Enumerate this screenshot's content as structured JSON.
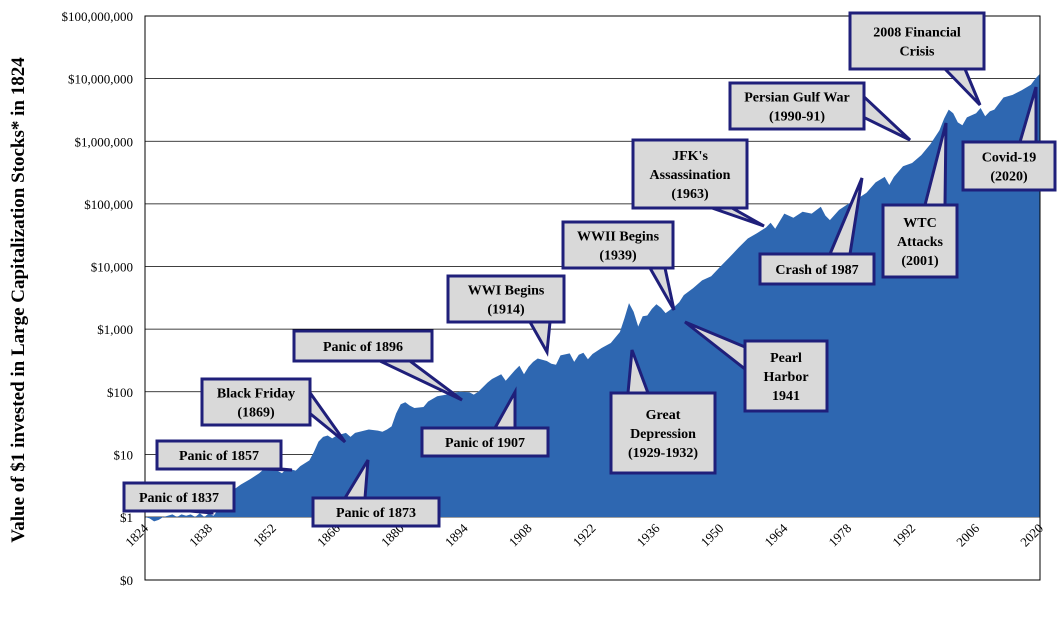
{
  "chart_data": {
    "type": "area",
    "ylabel": "Value of $1 invested in Large Capitalization Stocks* in 1824",
    "y_scale": "log",
    "yticks": [
      {
        "value": 0,
        "label": "$0"
      },
      {
        "value": 1,
        "label": "$1"
      },
      {
        "value": 10,
        "label": "$10"
      },
      {
        "value": 100,
        "label": "$100"
      },
      {
        "value": 1000,
        "label": "$1,000"
      },
      {
        "value": 10000,
        "label": "$10,000"
      },
      {
        "value": 100000,
        "label": "$100,000"
      },
      {
        "value": 1000000,
        "label": "$1,000,000"
      },
      {
        "value": 10000000,
        "label": "$10,000,000"
      },
      {
        "value": 100000000,
        "label": "$100,000,000"
      }
    ],
    "xticks": [
      "1824",
      "1838",
      "1852",
      "1866",
      "1880",
      "1894",
      "1908",
      "1922",
      "1936",
      "1950",
      "1964",
      "1978",
      "1992",
      "2006",
      "2020"
    ],
    "xlim": [
      1824,
      2020
    ],
    "grid": true,
    "series": [
      {
        "color": "#2e67b1",
        "x": [
          1824,
          1825,
          1826,
          1827,
          1828,
          1829,
          1830,
          1831,
          1832,
          1833,
          1834,
          1835,
          1836,
          1837,
          1838,
          1839,
          1840,
          1841,
          1842,
          1843,
          1845,
          1847,
          1849,
          1850,
          1852,
          1853,
          1854,
          1855,
          1857,
          1858,
          1860,
          1861,
          1862,
          1863,
          1864,
          1865,
          1866,
          1868,
          1869,
          1870,
          1872,
          1873,
          1875,
          1876,
          1877,
          1878,
          1879,
          1880,
          1881,
          1882,
          1883,
          1885,
          1886,
          1888,
          1890,
          1891,
          1893,
          1895,
          1896,
          1897,
          1899,
          1900,
          1902,
          1903,
          1905,
          1906,
          1907,
          1908,
          1909,
          1910,
          1912,
          1913,
          1914,
          1915,
          1917,
          1918,
          1919,
          1920,
          1921,
          1922,
          1924,
          1926,
          1928,
          1929,
          1930,
          1931,
          1932,
          1933,
          1934,
          1935,
          1936,
          1937,
          1938,
          1940,
          1941,
          1942,
          1944,
          1946,
          1948,
          1950,
          1952,
          1954,
          1956,
          1958,
          1960,
          1961,
          1962,
          1964,
          1966,
          1968,
          1970,
          1972,
          1973,
          1974,
          1976,
          1978,
          1980,
          1982,
          1984,
          1986,
          1987,
          1988,
          1990,
          1992,
          1994,
          1996,
          1998,
          1999,
          2000,
          2001,
          2002,
          2003,
          2004,
          2006,
          2007,
          2008,
          2009,
          2010,
          2012,
          2014,
          2016,
          2018,
          2019,
          2020
        ],
        "values": [
          1,
          0.95,
          0.85,
          0.9,
          1.0,
          1.05,
          1.1,
          1.0,
          1.1,
          1.05,
          1.1,
          1.0,
          1.15,
          1.0,
          1.15,
          1.05,
          1.3,
          1.6,
          2.0,
          2.6,
          3.3,
          4.0,
          5.0,
          5.8,
          5.9,
          5.5,
          5.0,
          6.0,
          5.5,
          6.5,
          8,
          11,
          16,
          19,
          20,
          18,
          20,
          22,
          19,
          22,
          24,
          25,
          24,
          23,
          25,
          28,
          45,
          63,
          68,
          60,
          55,
          57,
          70,
          85,
          90,
          95,
          100,
          98,
          90,
          100,
          140,
          160,
          190,
          150,
          220,
          260,
          190,
          250,
          300,
          340,
          310,
          280,
          270,
          380,
          410,
          300,
          390,
          420,
          330,
          400,
          500,
          600,
          900,
          1500,
          2600,
          1900,
          1100,
          1600,
          1650,
          2100,
          2500,
          2200,
          1800,
          2300,
          2700,
          3500,
          4500,
          6000,
          7000,
          10000,
          14000,
          20000,
          28000,
          34000,
          42000,
          50000,
          40000,
          70000,
          60000,
          75000,
          70000,
          90000,
          65000,
          55000,
          80000,
          100000,
          120000,
          150000,
          220000,
          270000,
          200000,
          270000,
          400000,
          450000,
          600000,
          900000,
          1500000,
          2300000,
          3200000,
          2800000,
          2000000,
          1800000,
          2400000,
          2800000,
          3400000,
          2500000,
          3000000,
          3200000,
          5000000,
          5500000,
          6500000,
          8000000,
          10000000,
          12000000
        ]
      }
    ],
    "annotations": [
      {
        "label": "Panic of 1837",
        "year": 1837
      },
      {
        "label": "Panic of 1857",
        "year": 1857
      },
      {
        "label": "Black Friday\n(1869)",
        "year": 1869
      },
      {
        "label": "Panic of 1873",
        "year": 1873
      },
      {
        "label": "Panic of 1896",
        "year": 1896
      },
      {
        "label": "Panic of 1907",
        "year": 1907
      },
      {
        "label": "WWI Begins\n(1914)",
        "year": 1914
      },
      {
        "label": "Great\nDepression\n(1929-1932)",
        "year": 1932
      },
      {
        "label": "WWII Begins\n(1939)",
        "year": 1939
      },
      {
        "label": "Pearl\nHarbor\n1941",
        "year": 1941
      },
      {
        "label": "JFK's\nAssassination\n(1963)",
        "year": 1963
      },
      {
        "label": "Crash of 1987",
        "year": 1987
      },
      {
        "label": "Persian Gulf War\n(1990-91)",
        "year": 1991
      },
      {
        "label": "WTC\nAttacks\n(2001)",
        "year": 2001
      },
      {
        "label": "2008 Financial\nCrisis",
        "year": 2008
      },
      {
        "label": "Covid-19\n(2020)",
        "year": 2020
      }
    ]
  },
  "colors": {
    "area": "#2e67b1",
    "callout_fill": "#d9d9d9",
    "callout_border": "#1f1f7a",
    "grid": "#000000"
  }
}
